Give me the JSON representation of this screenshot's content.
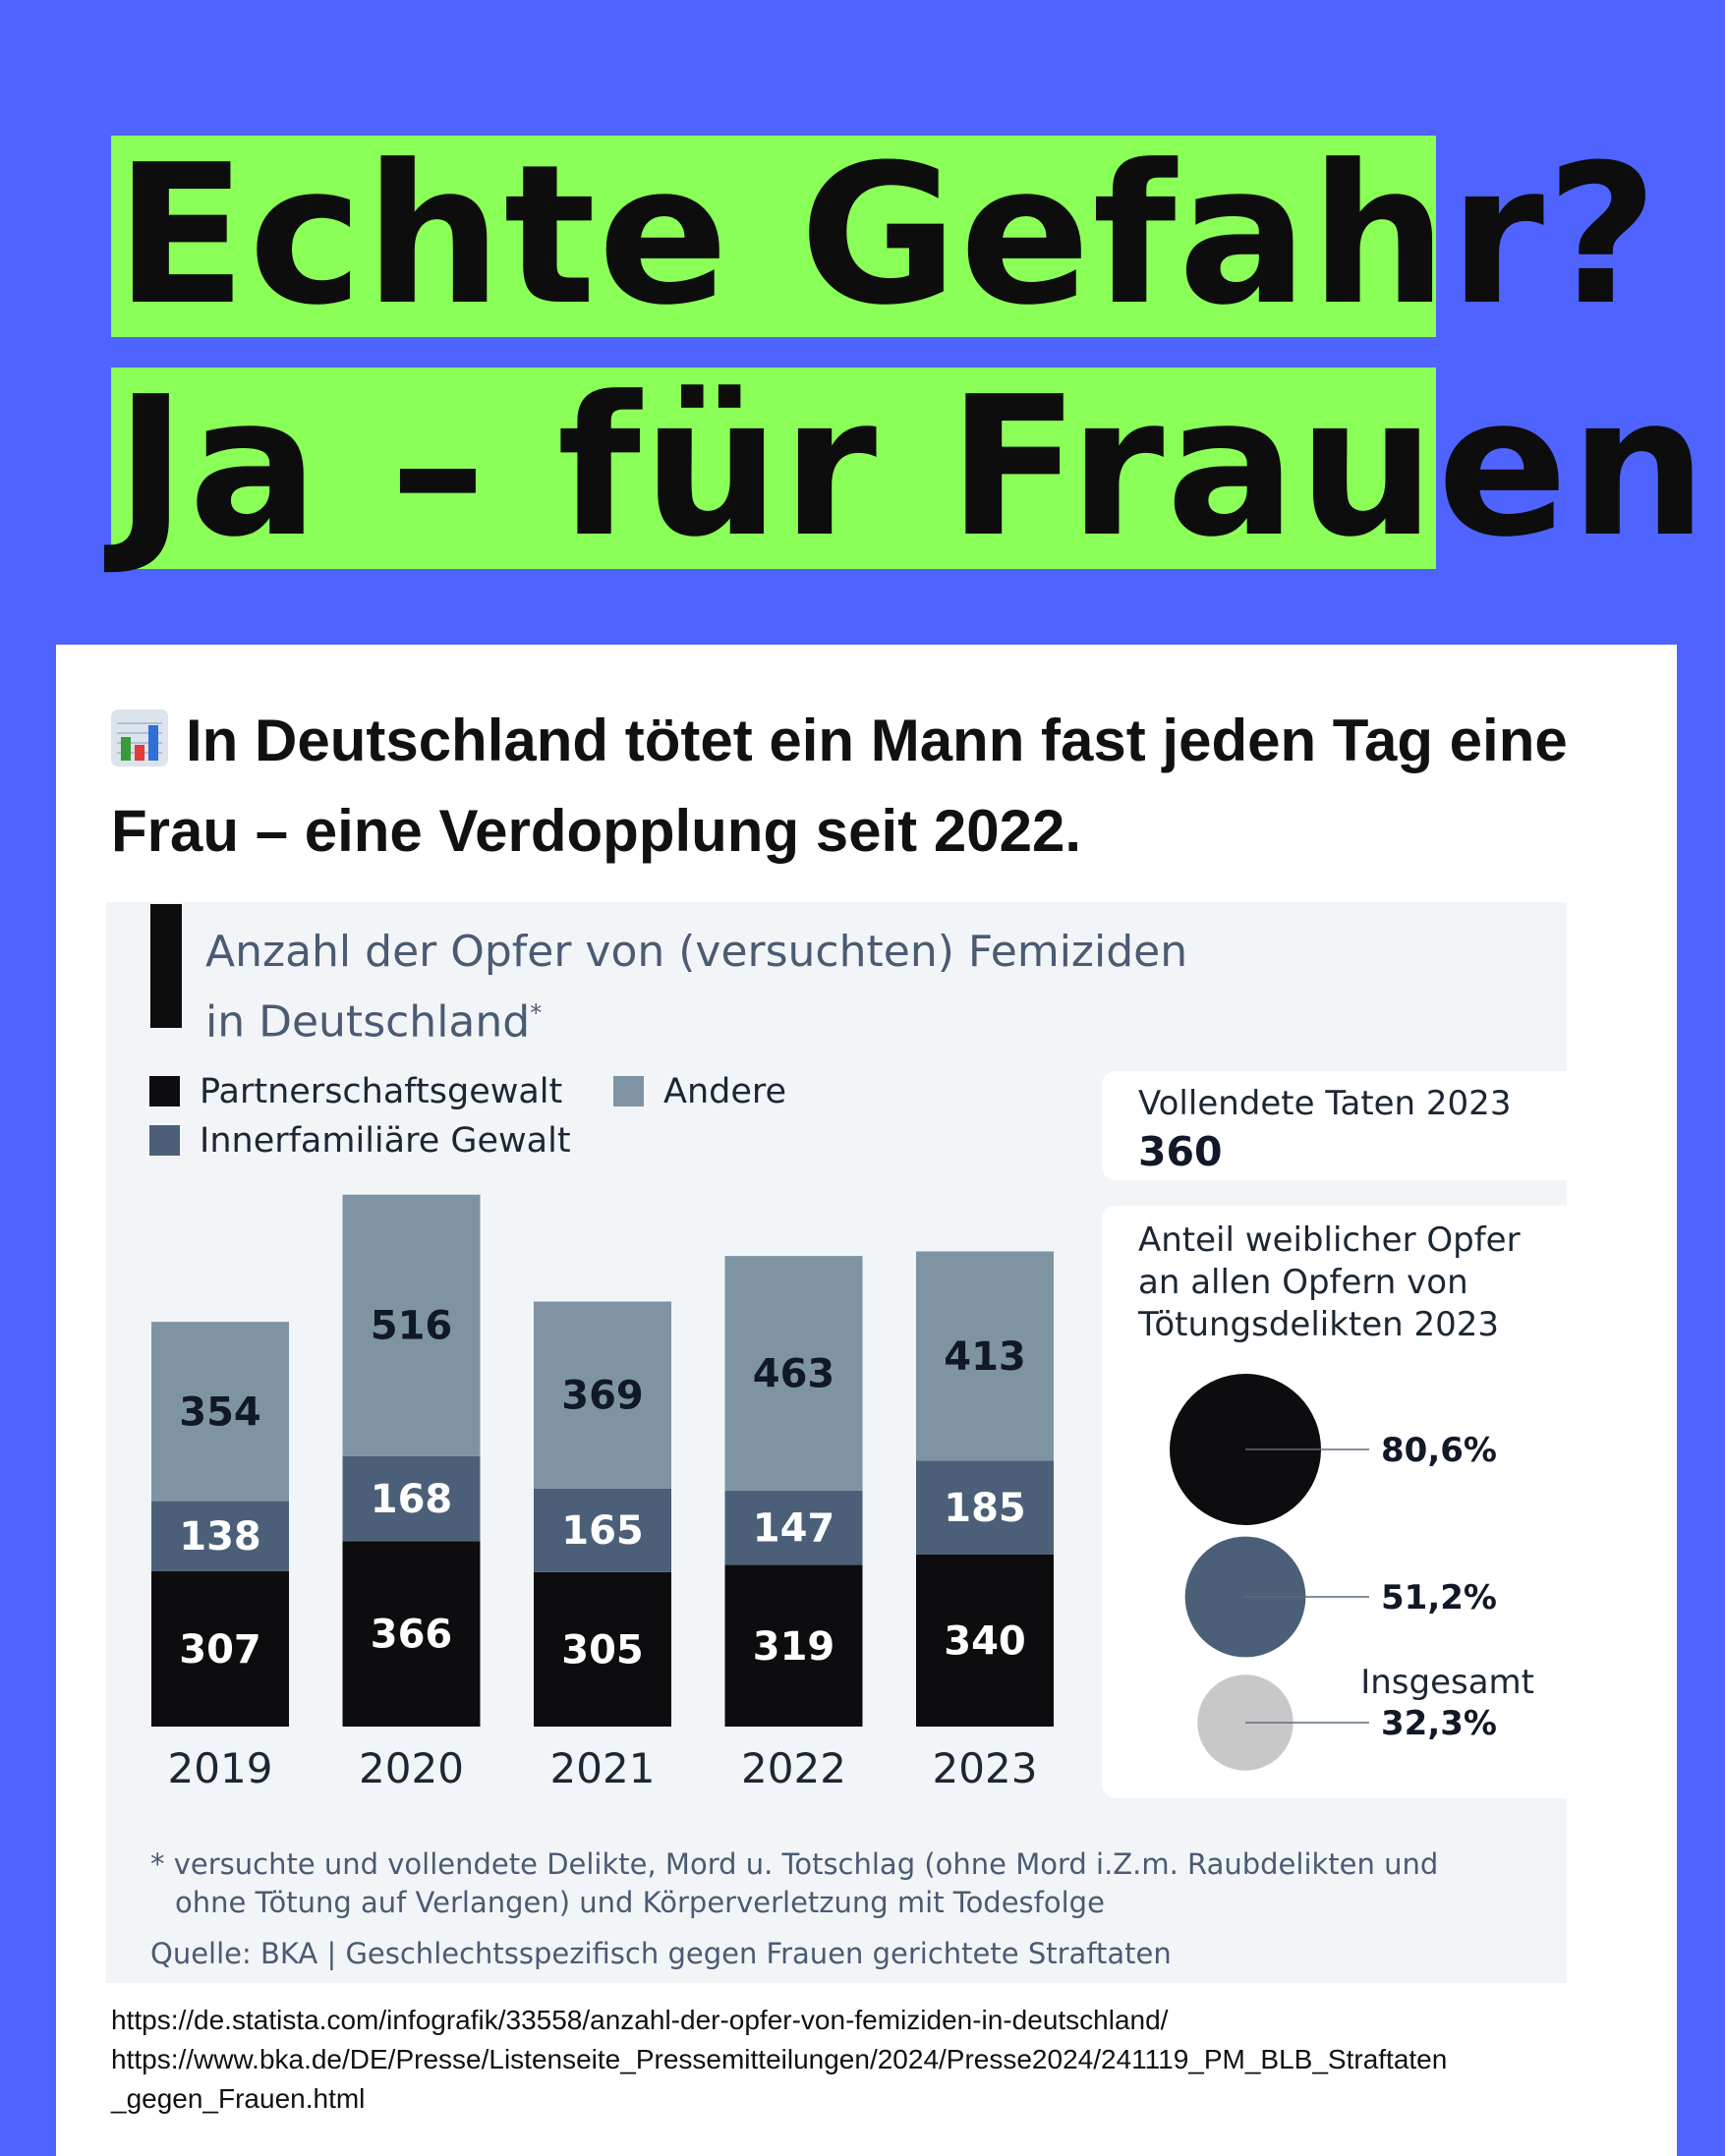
{
  "headline": {
    "line1": "Echte Gefahr?",
    "line2": "Ja – für Frauen"
  },
  "intro": {
    "emoji": "chart-emoji",
    "text": "In Deutschland tötet ein Mann fast jeden Tag eine Frau – eine Verdopplung seit 2022."
  },
  "chart_data": {
    "type": "bar",
    "stacked": true,
    "title_line1": "Anzahl der Opfer von (versuchten) Femiziden",
    "title_line2": "in Deutschland",
    "title_marker": "*",
    "categories": [
      "2019",
      "2020",
      "2021",
      "2022",
      "2023"
    ],
    "series": [
      {
        "name": "Partnerschaftsgewalt",
        "color": "#0d0d0f",
        "values": [
          307,
          366,
          305,
          319,
          340
        ]
      },
      {
        "name": "Innerfamiliäre Gewalt",
        "color": "#4b6078",
        "values": [
          138,
          168,
          165,
          147,
          185
        ]
      },
      {
        "name": "Andere",
        "color": "#7e94a3",
        "values": [
          354,
          516,
          369,
          463,
          413
        ]
      }
    ],
    "ylim": [
      0,
      1050
    ],
    "grid": false,
    "legend_position": "top-left",
    "side_panel": {
      "completed_label": "Vollendete Taten 2023",
      "completed_value": "360",
      "share_label_line1": "Anteil weiblicher Opfer",
      "share_label_line2": "an allen Opfern von",
      "share_label_line3": "Tötungsdelikten 2023",
      "shares": [
        {
          "label": "",
          "value": 80.6,
          "display": "80,6%",
          "color": "#0d0d0f"
        },
        {
          "label": "",
          "value": 51.2,
          "display": "51,2%",
          "color": "#4b6078"
        },
        {
          "label": "Insgesamt",
          "value": 32.3,
          "display": "32,3%",
          "color": "#c8c8c8"
        }
      ]
    },
    "footnote_line1": "* versuchte und vollendete Delikte, Mord u. Totschlag (ohne Mord i.Z.m. Raubdelikten und",
    "footnote_line2": "ohne Tötung auf Verlangen) und Körperverletzung mit Todesfolge",
    "source": "Quelle: BKA | Geschlechtsspezifisch gegen Frauen gerichtete Straftaten"
  },
  "links": [
    "https://de.statista.com/infografik/33558/anzahl-der-opfer-von-femiziden-in-deutschland/",
    "https://www.bka.de/DE/Presse/Listenseite_Pressemitteilungen/2024/Presse2024/241119_PM_BLB_Straftaten",
    "_gegen_Frauen.html"
  ]
}
